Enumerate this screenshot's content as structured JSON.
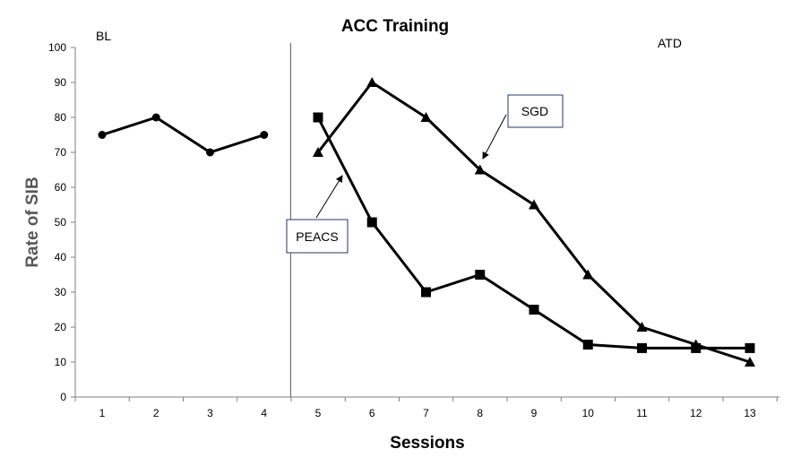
{
  "chart_data": {
    "type": "line",
    "title": "ACC Training",
    "xlabel": "Sessions",
    "ylabel": "Rate of SIB",
    "x_ticks": [
      "1",
      "2",
      "3",
      "4",
      "5",
      "6",
      "7",
      "8",
      "9",
      "10",
      "11",
      "12",
      "13"
    ],
    "ylim": [
      0,
      100
    ],
    "y_ticks": [
      "0",
      "10",
      "20",
      "30",
      "40",
      "50",
      "60",
      "70",
      "80",
      "90",
      "100"
    ],
    "grid": false,
    "phase_labels": {
      "baseline": "BL",
      "alternating": "ATD"
    },
    "phase_change_after_session": 4,
    "series": [
      {
        "name": "Baseline",
        "marker": "circle",
        "x": [
          1,
          2,
          3,
          4
        ],
        "values": [
          75,
          80,
          70,
          75
        ]
      },
      {
        "name": "SGD",
        "marker": "triangle",
        "x": [
          5,
          6,
          7,
          8,
          9,
          10,
          11,
          12,
          13
        ],
        "values": [
          70,
          90,
          80,
          65,
          55,
          35,
          20,
          15,
          10
        ]
      },
      {
        "name": "PEACS",
        "marker": "square",
        "x": [
          5,
          6,
          7,
          8,
          9,
          10,
          11,
          12,
          13
        ],
        "values": [
          80,
          50,
          30,
          35,
          25,
          15,
          14,
          14,
          14
        ]
      }
    ],
    "annotations": [
      {
        "text": "SGD",
        "points_to_series": "SGD"
      },
      {
        "text": "PEACS",
        "points_to_series": "PEACS"
      }
    ],
    "colors": {
      "line": "#000000",
      "axis": "#7f7f7f",
      "axis_title": "#595959",
      "callout_border": "#1f3864"
    }
  }
}
